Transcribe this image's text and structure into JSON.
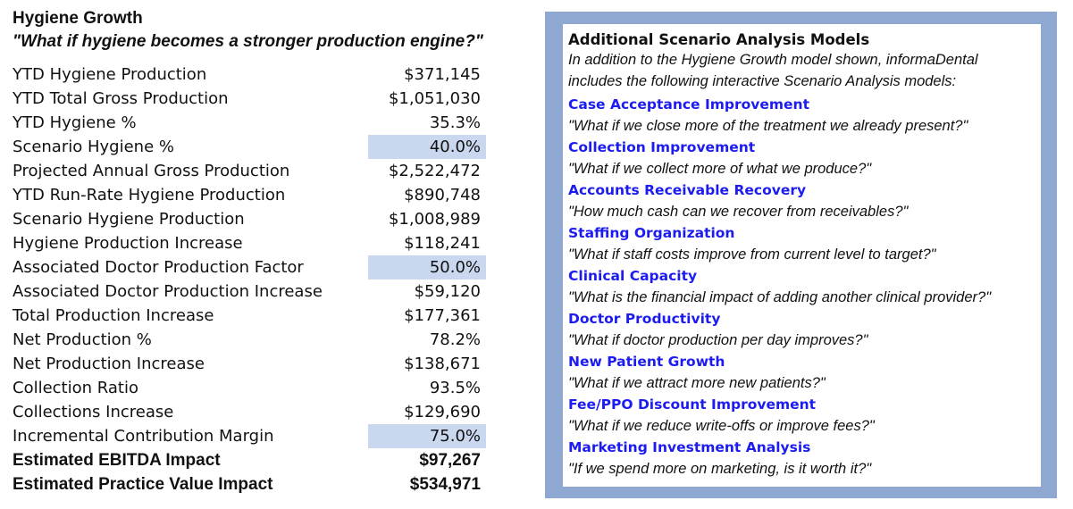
{
  "hygiene": {
    "title": "Hygiene Growth",
    "subtitle": "\"What if hygiene becomes a stronger production engine?\"",
    "rows": [
      {
        "label": "YTD Hygiene Production",
        "value": "$371,145"
      },
      {
        "label": "YTD Total Gross Production",
        "value": "$1,051,030"
      },
      {
        "label": "YTD Hygiene %",
        "value": "35.3%"
      },
      {
        "label": "Scenario Hygiene %",
        "value": "40.0%"
      },
      {
        "label": "Projected Annual Gross Production",
        "value": "$2,522,472"
      },
      {
        "label": "YTD Run-Rate Hygiene Production",
        "value": "$890,748"
      },
      {
        "label": "Scenario Hygiene Production",
        "value": "$1,008,989"
      },
      {
        "label": "Hygiene Production Increase",
        "value": "$118,241"
      },
      {
        "label": "Associated Doctor Production Factor",
        "value": "50.0%"
      },
      {
        "label": "Associated Doctor Production Increase",
        "value": "$59,120"
      },
      {
        "label": "Total Production Increase",
        "value": "$177,361"
      },
      {
        "label": "Net Production %",
        "value": "78.2%"
      },
      {
        "label": "Net Production Increase",
        "value": "$138,671"
      },
      {
        "label": "Collection Ratio",
        "value": "93.5%"
      },
      {
        "label": "Collections Increase",
        "value": "$129,690"
      },
      {
        "label": "Incremental Contribution Margin",
        "value": "75.0%"
      },
      {
        "label": "Estimated EBITDA Impact",
        "value": "$97,267"
      },
      {
        "label": "Estimated Practice Value Impact",
        "value": "$534,971"
      }
    ]
  },
  "panel": {
    "title": "Additional Scenario Analysis Models",
    "intro_line1": "In addition to the Hygiene Growth model shown, informaDental",
    "intro_line2": "includes the following interactive Scenario Analysis models:",
    "models": [
      {
        "name": "Case Acceptance Improvement",
        "question": "\"What if we close more of the treatment we already present?\""
      },
      {
        "name": "Collection Improvement",
        "question": "\"What if we collect more of what we produce?\""
      },
      {
        "name": "Accounts Receivable Recovery",
        "question": "\"How much cash can we recover from receivables?\""
      },
      {
        "name": "Staffing Organization",
        "question": "\"What if staff costs improve from current level to target?\""
      },
      {
        "name": "Clinical Capacity",
        "question": "\"What is the financial impact of adding another clinical provider?\""
      },
      {
        "name": "Doctor Productivity",
        "question": "\"What if doctor production per day improves?\""
      },
      {
        "name": "New Patient Growth",
        "question": "\"What if we attract more new patients?\""
      },
      {
        "name": "Fee/PPO Discount Improvement",
        "question": "\"What if we reduce write-offs or improve fees?\""
      },
      {
        "name": "Marketing Investment Analysis",
        "question": "\"If we spend more on marketing, is it worth it?\""
      }
    ]
  },
  "colors": {
    "input_cell": "#c9d8ee",
    "panel_border": "#8ea8d2",
    "model_link": "#1c1cf0"
  }
}
